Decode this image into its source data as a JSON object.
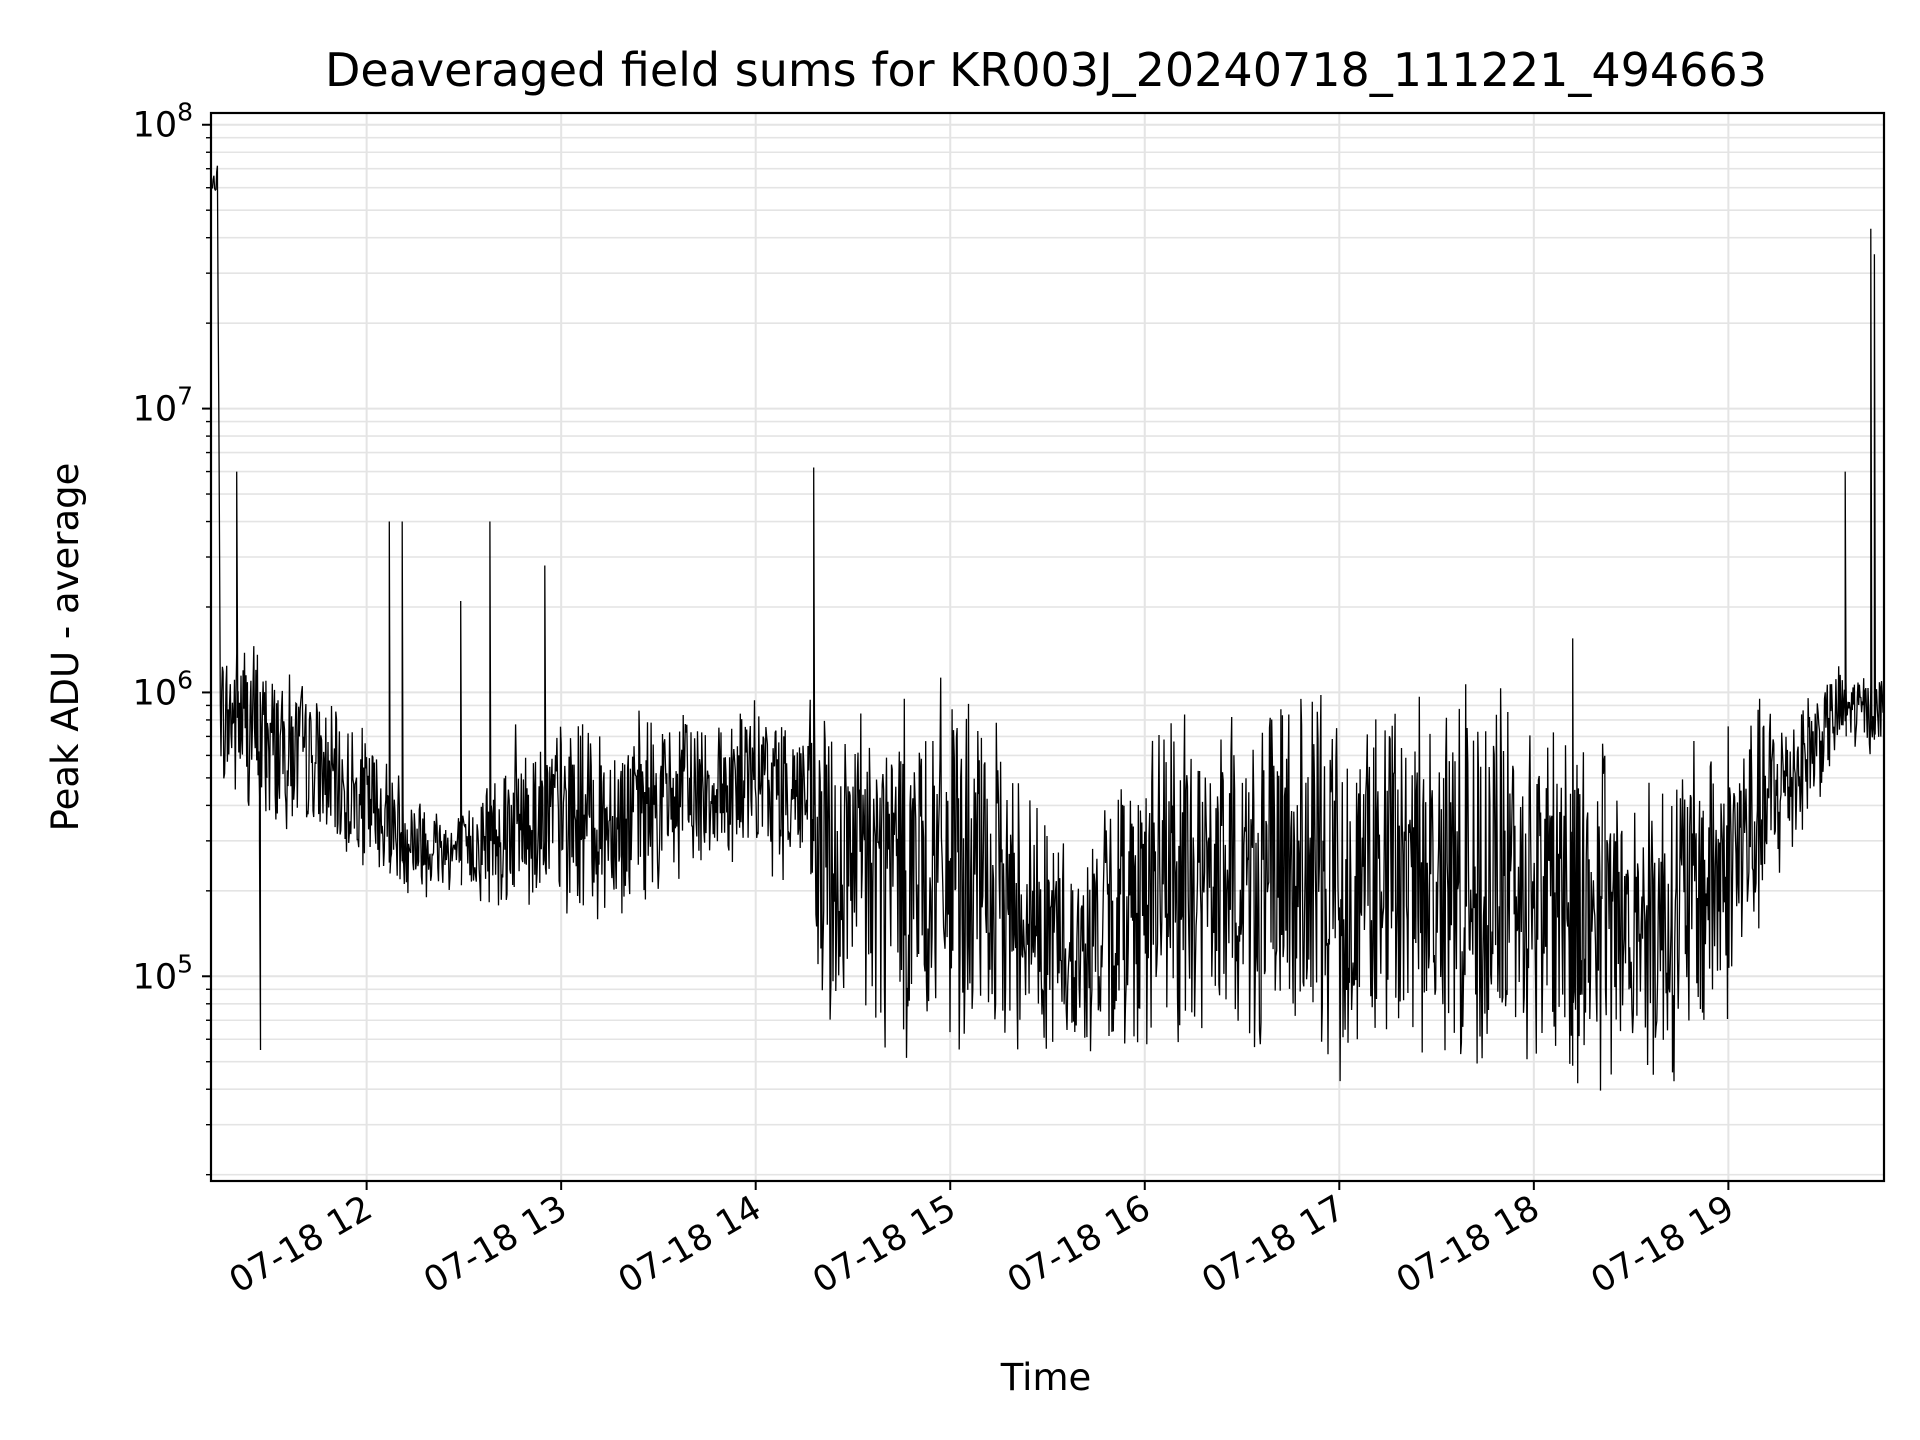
{
  "chart_data": {
    "type": "line",
    "title": "Deaveraged field sums for KR003J_20240718_111221_494663",
    "xlabel": "Time",
    "ylabel": "Peak ADU - average",
    "yscale": "log",
    "ylim": [
      19000,
      110000000
    ],
    "xlim": [
      "2024-07-18 11:12",
      "2024-07-18 19:48"
    ],
    "x_ticks": [
      {
        "t": "2024-07-18 12:00",
        "label": "07-18 12"
      },
      {
        "t": "2024-07-18 13:00",
        "label": "07-18 13"
      },
      {
        "t": "2024-07-18 14:00",
        "label": "07-18 14"
      },
      {
        "t": "2024-07-18 15:00",
        "label": "07-18 15"
      },
      {
        "t": "2024-07-18 16:00",
        "label": "07-18 16"
      },
      {
        "t": "2024-07-18 17:00",
        "label": "07-18 17"
      },
      {
        "t": "2024-07-18 18:00",
        "label": "07-18 18"
      },
      {
        "t": "2024-07-18 19:00",
        "label": "07-18 19"
      }
    ],
    "y_ticks": [
      {
        "value": 100000,
        "base": "10",
        "exp": "5"
      },
      {
        "value": 1000000,
        "base": "10",
        "exp": "6"
      },
      {
        "value": 10000000,
        "base": "10",
        "exp": "7"
      },
      {
        "value": 100000000,
        "base": "10",
        "exp": "8"
      }
    ],
    "grid": true,
    "line_color": "#000000",
    "series": [
      {
        "envelope": [
          {
            "t": "2024-07-18 11:12",
            "low": 55000000,
            "high": 60000000
          },
          {
            "t": "2024-07-18 11:14",
            "low": 60000000,
            "high": 75000000
          },
          {
            "t": "2024-07-18 11:15",
            "low": 400000,
            "high": 1500000
          },
          {
            "t": "2024-07-18 11:20",
            "low": 350000,
            "high": 2000000
          },
          {
            "t": "2024-07-18 11:30",
            "low": 300000,
            "high": 1500000
          },
          {
            "t": "2024-07-18 11:40",
            "low": 300000,
            "high": 1200000
          },
          {
            "t": "2024-07-18 11:50",
            "low": 250000,
            "high": 900000
          },
          {
            "t": "2024-07-18 12:00",
            "low": 200000,
            "high": 800000
          },
          {
            "t": "2024-07-18 12:15",
            "low": 180000,
            "high": 500000
          },
          {
            "t": "2024-07-18 12:30",
            "low": 180000,
            "high": 400000
          },
          {
            "t": "2024-07-18 12:45",
            "low": 160000,
            "high": 800000
          },
          {
            "t": "2024-07-18 13:00",
            "low": 150000,
            "high": 900000
          },
          {
            "t": "2024-07-18 13:15",
            "low": 140000,
            "high": 900000
          },
          {
            "t": "2024-07-18 13:30",
            "low": 180000,
            "high": 900000
          },
          {
            "t": "2024-07-18 13:45",
            "low": 220000,
            "high": 1000000
          },
          {
            "t": "2024-07-18 14:00",
            "low": 220000,
            "high": 1000000
          },
          {
            "t": "2024-07-18 14:15",
            "low": 200000,
            "high": 1000000
          },
          {
            "t": "2024-07-18 14:20",
            "low": 45000,
            "high": 1100000
          },
          {
            "t": "2024-07-18 14:40",
            "low": 45000,
            "high": 1200000
          },
          {
            "t": "2024-07-18 15:00",
            "low": 45000,
            "high": 1200000
          },
          {
            "t": "2024-07-18 15:20",
            "low": 50000,
            "high": 700000
          },
          {
            "t": "2024-07-18 15:40",
            "low": 45000,
            "high": 300000
          },
          {
            "t": "2024-07-18 16:00",
            "low": 50000,
            "high": 900000
          },
          {
            "t": "2024-07-18 16:20",
            "low": 45000,
            "high": 1000000
          },
          {
            "t": "2024-07-18 16:40",
            "low": 45000,
            "high": 1100000
          },
          {
            "t": "2024-07-18 17:00",
            "low": 40000,
            "high": 1200000
          },
          {
            "t": "2024-07-18 17:20",
            "low": 40000,
            "high": 1200000
          },
          {
            "t": "2024-07-18 17:40",
            "low": 40000,
            "high": 1200000
          },
          {
            "t": "2024-07-18 18:00",
            "low": 40000,
            "high": 1200000
          },
          {
            "t": "2024-07-18 18:20",
            "low": 35000,
            "high": 800000
          },
          {
            "t": "2024-07-18 18:40",
            "low": 35000,
            "high": 700000
          },
          {
            "t": "2024-07-18 19:00",
            "low": 60000,
            "high": 1000000
          },
          {
            "t": "2024-07-18 19:20",
            "low": 250000,
            "high": 1100000
          },
          {
            "t": "2024-07-18 19:35",
            "low": 600000,
            "high": 1300000
          },
          {
            "t": "2024-07-18 19:48",
            "low": 600000,
            "high": 1200000
          }
        ],
        "spikes": [
          {
            "t": "2024-07-18 11:20",
            "low": 1000000,
            "high": 6000000
          },
          {
            "t": "2024-07-18 11:29",
            "low": 500000,
            "high": 1100000
          },
          {
            "t": "2024-07-18 11:27",
            "low": 55000,
            "high": 300000
          },
          {
            "t": "2024-07-18 12:07",
            "low": 250000,
            "high": 4000000
          },
          {
            "t": "2024-07-18 12:11",
            "low": 250000,
            "high": 4000000
          },
          {
            "t": "2024-07-18 12:29",
            "low": 250000,
            "high": 2100000
          },
          {
            "t": "2024-07-18 12:38",
            "low": 300000,
            "high": 4000000
          },
          {
            "t": "2024-07-18 12:55",
            "low": 400000,
            "high": 2800000
          },
          {
            "t": "2024-07-18 14:18",
            "low": 400000,
            "high": 6200000
          },
          {
            "t": "2024-07-18 18:12",
            "low": 100000,
            "high": 1550000
          },
          {
            "t": "2024-07-18 19:36",
            "low": 700000,
            "high": 6000000
          },
          {
            "t": "2024-07-18 19:44",
            "low": 800000,
            "high": 43000000
          },
          {
            "t": "2024-07-18 19:45",
            "low": 800000,
            "high": 35000000
          }
        ]
      }
    ]
  }
}
